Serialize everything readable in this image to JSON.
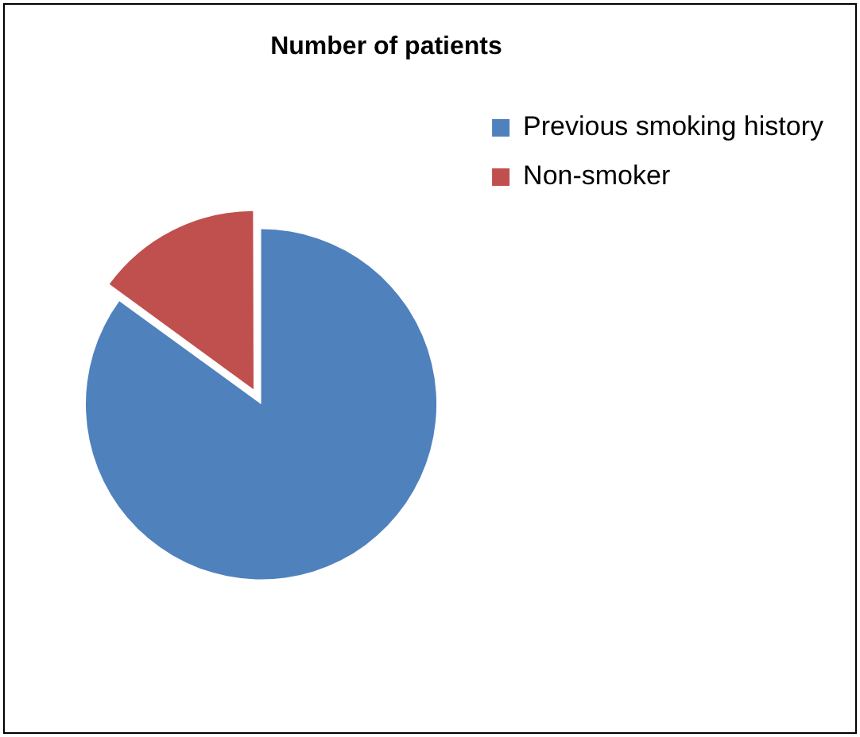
{
  "chart_data": {
    "type": "pie",
    "title": "Number of patients",
    "categories": [
      "Previous smoking history",
      "Non-smoker"
    ],
    "values": [
      85,
      15
    ],
    "colors": [
      "#4f81bd",
      "#c0504d"
    ],
    "legend": "top right"
  }
}
